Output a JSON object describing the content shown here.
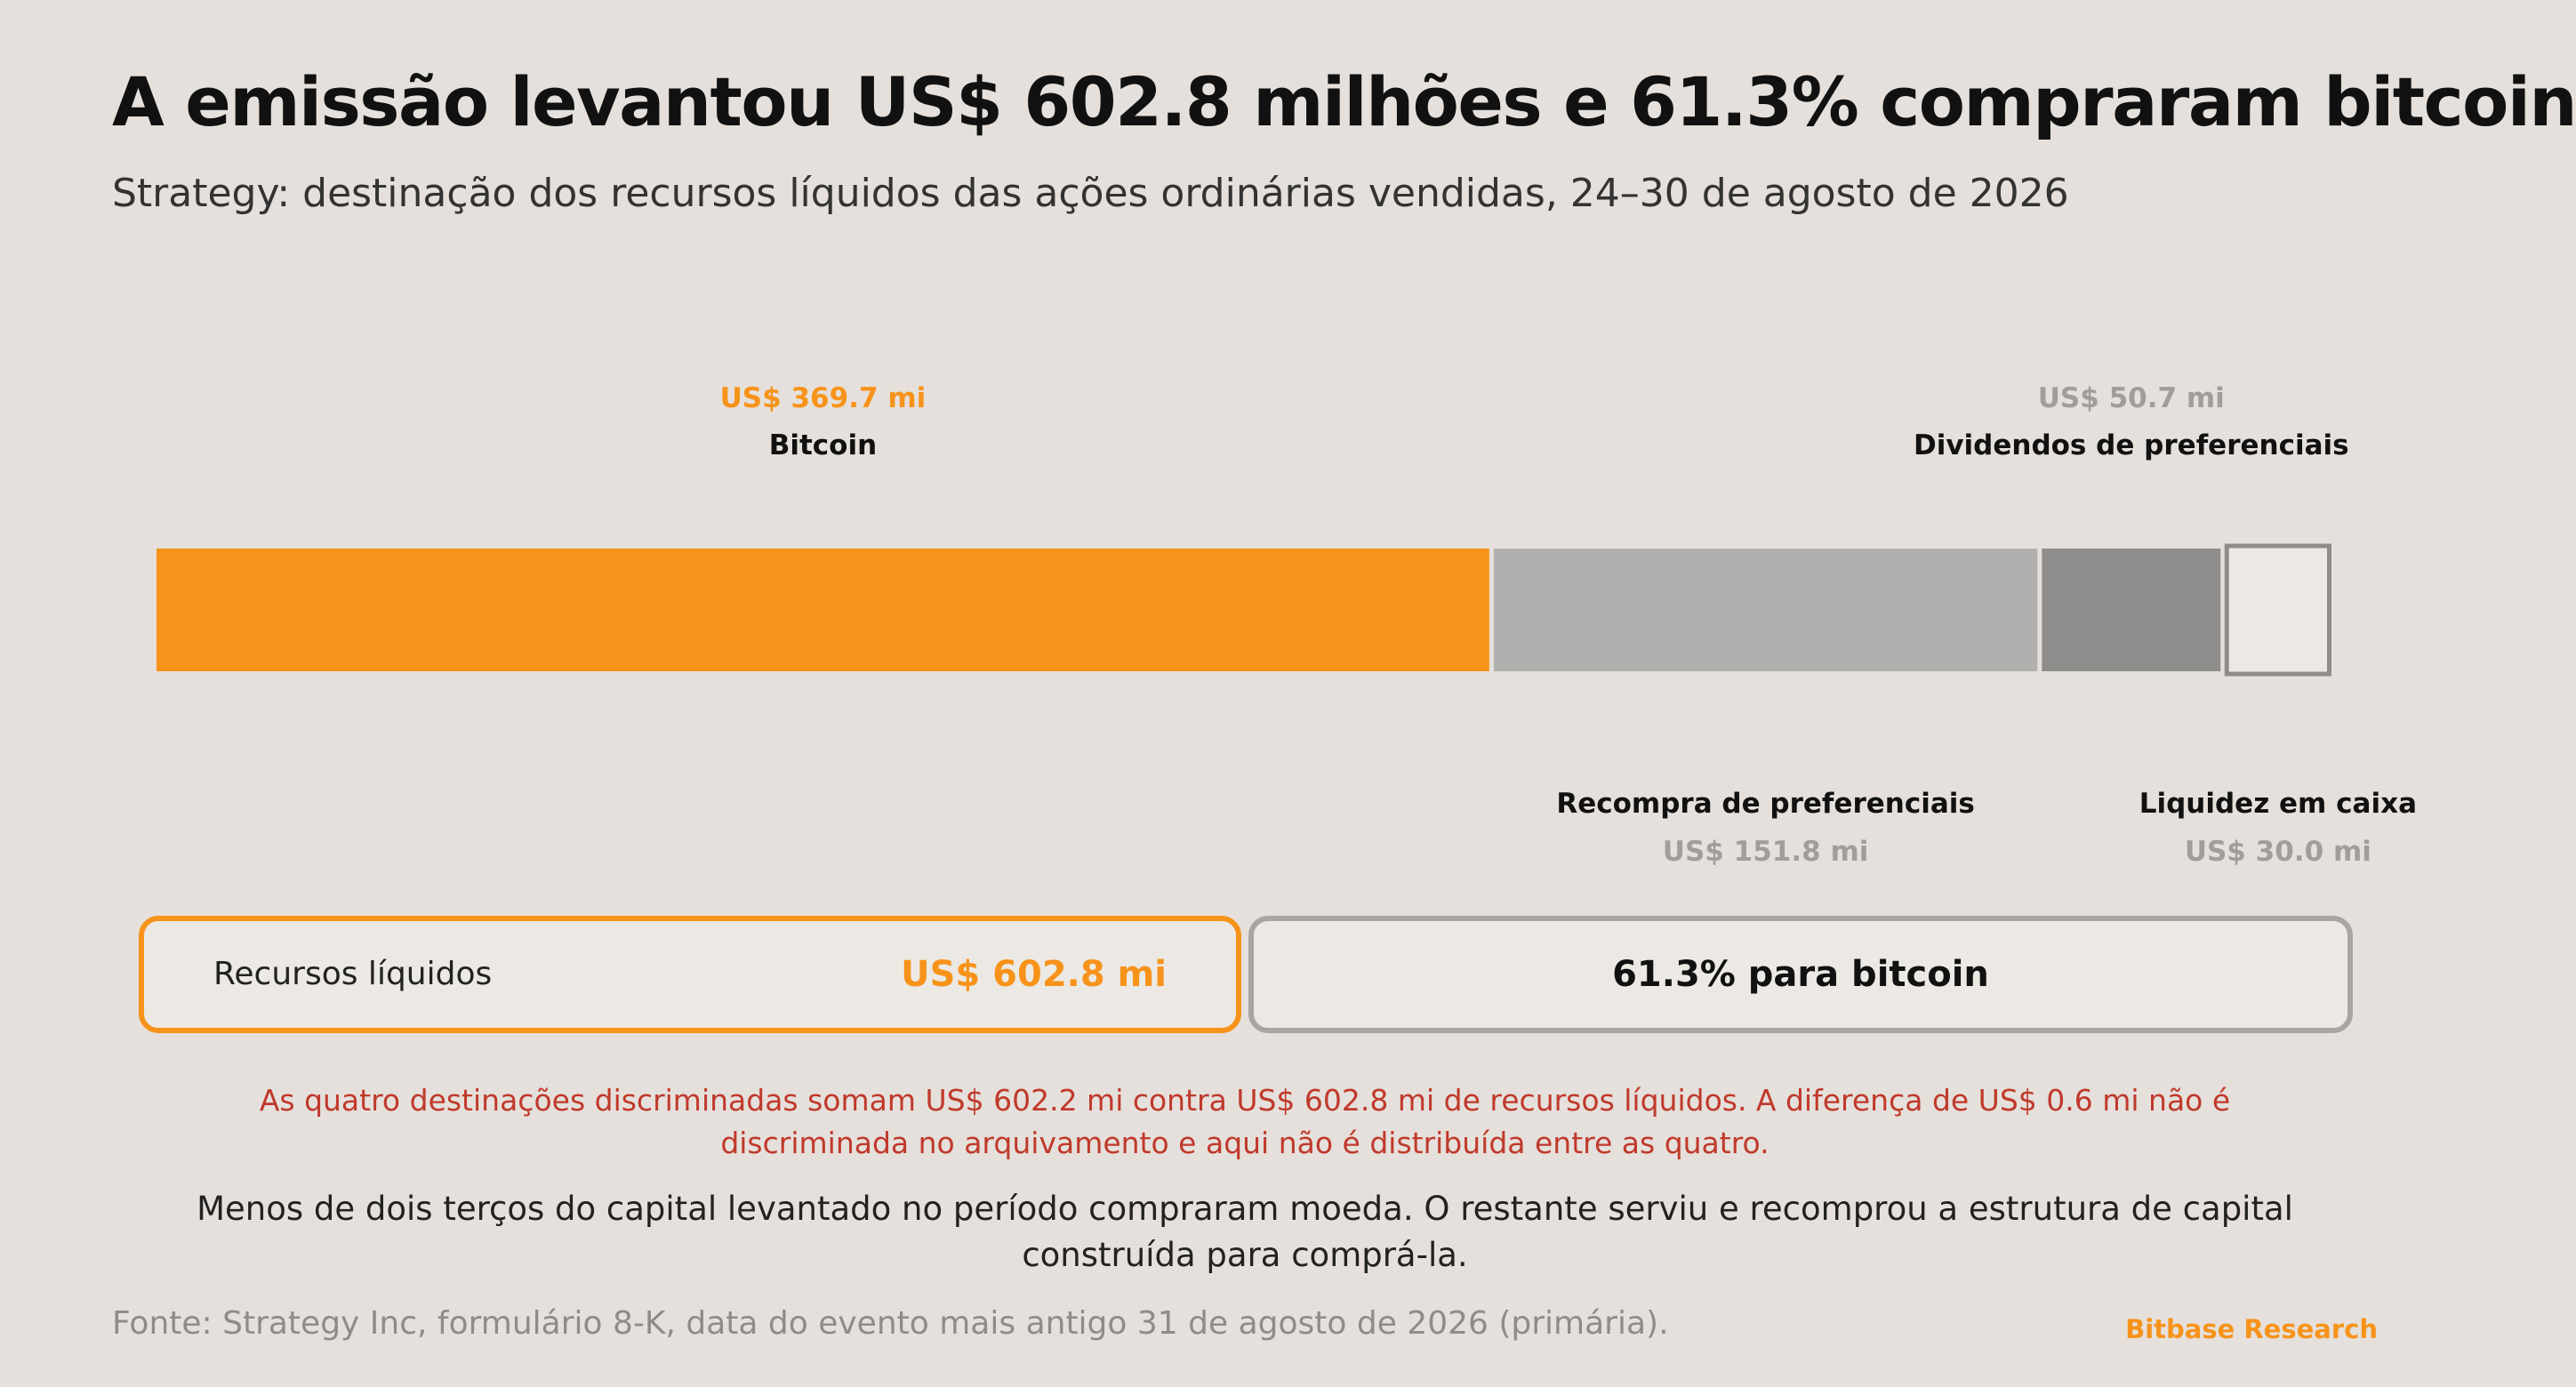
{
  "header": {
    "title": "A emissão levantou US$ 602.8 milhões e 61.3% compraram bitcoin",
    "subtitle": "Strategy: destinação dos recursos líquidos das ações ordinárias vendidas, 24–30 de agosto de 2026"
  },
  "chart_data": {
    "type": "bar",
    "orientation": "horizontal-stacked",
    "unit": "US$ mi",
    "total": 602.8,
    "segments": [
      {
        "name": "Bitcoin",
        "value": 369.7,
        "value_label": "US$ 369.7 mi",
        "color": "#f7931a",
        "label_color": "#f7931a",
        "label_position": "top"
      },
      {
        "name": "Recompra de preferenciais",
        "value": 151.8,
        "value_label": "US$ 151.8 mi",
        "color": "#b1b0af",
        "label_color": "#a09e9b",
        "label_position": "bottom"
      },
      {
        "name": "Dividendos de preferenciais",
        "value": 50.7,
        "value_label": "US$ 50.7 mi",
        "color": "#8e8d8c",
        "label_color": "#a09e9b",
        "label_position": "top"
      },
      {
        "name": "Liquidez em caixa",
        "value": 30.0,
        "value_label": "US$ 30.0 mi",
        "color": "#ece9e4",
        "outline": "#8e8d8c",
        "label_color": "#a09e9b",
        "label_position": "bottom"
      }
    ]
  },
  "summary": {
    "total_label": "Recursos líquidos",
    "total_value": "US$ 602.8 mi",
    "share_text": "61.3% para bitcoin"
  },
  "note": "As quatro destinações discriminadas somam US$ 602.2 mi contra US$ 602.8 mi de recursos líquidos. A diferença de US$ 0.6 mi não é discriminada no arquivamento e aqui não é distribuída entre as quatro.",
  "takeaway": "Menos de dois terços do capital levantado no período compraram moeda. O restante serviu e recomprou a estrutura de capital construída para comprá-la.",
  "footer": {
    "source": "Fonte: Strategy Inc, formulário 8-K, data do evento mais antigo 31 de agosto de 2026 (primária).",
    "brand": "Bitbase Research"
  }
}
